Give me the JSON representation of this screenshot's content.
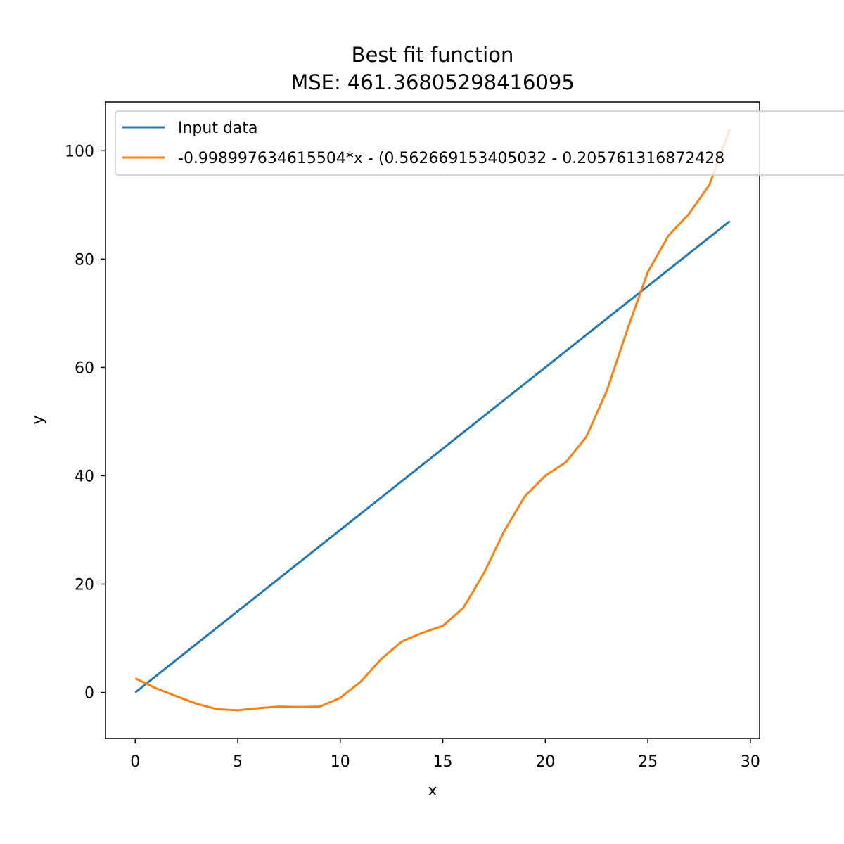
{
  "chart_data": {
    "type": "line",
    "title": "Best fit function",
    "subtitle": "MSE: 461.36805298416095",
    "xlabel": "x",
    "ylabel": "y",
    "xlim": [
      -1.45,
      30.45
    ],
    "ylim": [
      -8.5,
      109
    ],
    "xticks": [
      0,
      5,
      10,
      15,
      20,
      25,
      30
    ],
    "yticks": [
      0,
      20,
      40,
      60,
      80,
      100
    ],
    "grid": false,
    "legend_position": "top-left",
    "series": [
      {
        "name": "Input data",
        "color": "#1f77b4",
        "x": [
          0,
          29
        ],
        "y": [
          0,
          87
        ]
      },
      {
        "name": "-0.998997634615504*x - (0.562669153405032 - 0.205761316872428",
        "color": "#ff7f0e",
        "x": [
          0,
          1,
          2,
          3,
          4,
          5,
          6,
          7,
          8,
          9,
          10,
          11,
          12,
          13,
          14,
          15,
          16,
          17,
          18,
          19,
          20,
          21,
          22,
          23,
          24,
          25,
          26,
          27,
          28,
          29
        ],
        "y": [
          2.6,
          0.8,
          -0.7,
          -2.1,
          -3.1,
          -3.3,
          -2.9,
          -2.6,
          -2.7,
          -2.6,
          -1.0,
          2.0,
          6.2,
          9.4,
          11.0,
          12.3,
          15.6,
          22.0,
          29.8,
          36.2,
          40.0,
          42.5,
          47.2,
          55.7,
          67.0,
          77.6,
          84.3,
          88.3,
          93.7,
          104.0
        ]
      }
    ]
  }
}
